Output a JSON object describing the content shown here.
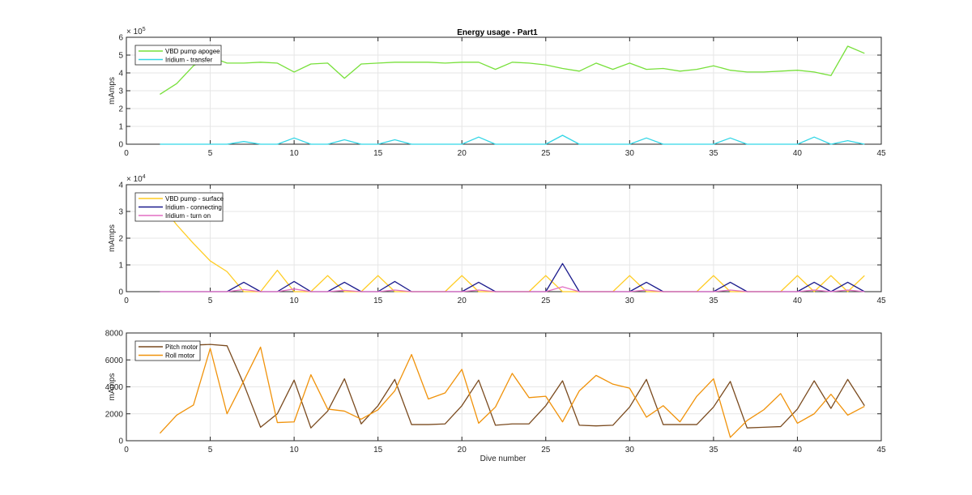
{
  "figure": {
    "title": "Energy usage - Part1",
    "xlabel": "Dive number"
  },
  "chart_data": [
    {
      "type": "line",
      "title": "Energy usage - Part1",
      "xlabel": "",
      "ylabel": "mAmps",
      "xlim": [
        0,
        45
      ],
      "ylim": [
        0,
        6
      ],
      "y_exponent_label": "× 10",
      "y_exponent_power": "5",
      "y_multiplier": 100000,
      "x_ticks": [
        "0",
        "5",
        "10",
        "15",
        "20",
        "25",
        "30",
        "35",
        "40",
        "45"
      ],
      "y_ticks": [
        "0",
        "1",
        "2",
        "3",
        "4",
        "5",
        "6"
      ],
      "grid": true,
      "legend": "top-left",
      "x": [
        2,
        3,
        4,
        5,
        6,
        7,
        8,
        9,
        10,
        11,
        12,
        13,
        14,
        15,
        16,
        17,
        18,
        19,
        20,
        21,
        22,
        23,
        24,
        25,
        26,
        27,
        28,
        29,
        30,
        31,
        32,
        33,
        34,
        35,
        36,
        37,
        38,
        39,
        40,
        41,
        42,
        43,
        44
      ],
      "series": [
        {
          "name": "VBD pump apogee",
          "color": "#77e03a",
          "values": [
            2.8,
            3.4,
            4.4,
            4.9,
            4.55,
            4.55,
            4.6,
            4.55,
            4.05,
            4.5,
            4.55,
            3.7,
            4.5,
            4.55,
            4.6,
            4.6,
            4.6,
            4.55,
            4.6,
            4.6,
            4.2,
            4.6,
            4.55,
            4.45,
            4.25,
            4.1,
            4.55,
            4.2,
            4.55,
            4.2,
            4.25,
            4.1,
            4.2,
            4.4,
            4.15,
            4.05,
            4.05,
            4.1,
            4.15,
            4.05,
            3.85,
            5.5,
            5.1
          ]
        },
        {
          "name": "Iridium - transfer",
          "color": "#33d6e6",
          "values": [
            0,
            0,
            0,
            0,
            0,
            0.15,
            0,
            0,
            0.35,
            0,
            0,
            0.25,
            0,
            0,
            0.25,
            0,
            0,
            0,
            0,
            0.4,
            0,
            0,
            0,
            0,
            0.5,
            0,
            0,
            0,
            0,
            0.35,
            0,
            0,
            0,
            0,
            0.35,
            0,
            0,
            0,
            0,
            0.4,
            0,
            0.2,
            0
          ]
        }
      ]
    },
    {
      "type": "line",
      "title": "",
      "xlabel": "",
      "ylabel": "mAmps",
      "xlim": [
        0,
        45
      ],
      "ylim": [
        0,
        4
      ],
      "y_exponent_label": "× 10",
      "y_exponent_power": "4",
      "y_multiplier": 10000,
      "x_ticks": [
        "0",
        "5",
        "10",
        "15",
        "20",
        "25",
        "30",
        "35",
        "40",
        "45"
      ],
      "y_ticks": [
        "0",
        "1",
        "2",
        "3",
        "4"
      ],
      "grid": true,
      "legend": "top-left",
      "x": [
        2,
        3,
        4,
        5,
        6,
        7,
        8,
        9,
        10,
        11,
        12,
        13,
        14,
        15,
        16,
        17,
        18,
        19,
        20,
        21,
        22,
        23,
        24,
        25,
        26,
        27,
        28,
        29,
        30,
        31,
        32,
        33,
        34,
        35,
        36,
        37,
        38,
        39,
        40,
        41,
        42,
        43,
        44
      ],
      "series": [
        {
          "name": "VBD pump - surface",
          "color": "#ffcc22",
          "values": [
            3.3,
            2.5,
            1.8,
            1.15,
            0.75,
            0,
            0,
            0.8,
            0,
            0,
            0.6,
            0,
            0,
            0.6,
            0,
            0,
            0,
            0,
            0.6,
            0,
            0,
            0,
            0,
            0.6,
            0,
            0,
            0,
            0,
            0.6,
            0,
            0,
            0,
            0,
            0.6,
            0,
            0,
            0,
            0,
            0.6,
            0,
            0.6,
            0,
            0.6
          ]
        },
        {
          "name": "Iridium - connecting",
          "color": "#1a1a8c",
          "values": [
            0,
            0,
            0,
            0,
            0,
            0.35,
            0,
            0,
            0.38,
            0,
            0,
            0.35,
            0,
            0,
            0.38,
            0,
            0,
            0,
            0,
            0.35,
            0,
            0,
            0,
            0,
            1.05,
            0,
            0,
            0,
            0,
            0.35,
            0,
            0,
            0,
            0,
            0.35,
            0,
            0,
            0,
            0,
            0.35,
            0,
            0.35,
            0
          ]
        },
        {
          "name": "Iridium - turn on",
          "color": "#e26fc3",
          "values": [
            0,
            0,
            0,
            0,
            0,
            0.08,
            0,
            0,
            0.1,
            0,
            0,
            0.05,
            0,
            0,
            0.06,
            0,
            0,
            0,
            0,
            0.06,
            0,
            0,
            0,
            0,
            0.18,
            0,
            0,
            0,
            0,
            0.06,
            0,
            0,
            0,
            0,
            0.06,
            0,
            0,
            0,
            0,
            0.06,
            0,
            0.06,
            0
          ]
        }
      ]
    },
    {
      "type": "line",
      "title": "",
      "xlabel": "Dive number",
      "ylabel": "mAmps",
      "xlim": [
        0,
        45
      ],
      "ylim": [
        0,
        8000
      ],
      "x_ticks": [
        "0",
        "5",
        "10",
        "15",
        "20",
        "25",
        "30",
        "35",
        "40",
        "45"
      ],
      "y_ticks": [
        "0",
        "2000",
        "4000",
        "6000",
        "8000"
      ],
      "grid": true,
      "legend": "top-left",
      "x": [
        2,
        3,
        4,
        5,
        6,
        7,
        8,
        9,
        10,
        11,
        12,
        13,
        14,
        15,
        16,
        17,
        18,
        19,
        20,
        21,
        22,
        23,
        24,
        25,
        26,
        27,
        28,
        29,
        30,
        31,
        32,
        33,
        34,
        35,
        36,
        37,
        38,
        39,
        40,
        41,
        42,
        43,
        44
      ],
      "series": [
        {
          "name": "Pitch motor",
          "color": "#7a4a1e",
          "values": [
            null,
            null,
            7100,
            7150,
            7050,
            4200,
            1000,
            2000,
            4500,
            950,
            2200,
            4600,
            1250,
            2600,
            4550,
            1200,
            1200,
            1250,
            2600,
            4500,
            1150,
            1250,
            1250,
            2600,
            4450,
            1150,
            1100,
            1150,
            2500,
            4550,
            1200,
            1200,
            1200,
            2500,
            4400,
            950,
            1000,
            1050,
            2350,
            4450,
            2400,
            4550,
            2600
          ]
        },
        {
          "name": "Roll motor",
          "color": "#f0920a",
          "values": [
            550,
            1900,
            2650,
            6850,
            2000,
            4450,
            6950,
            1350,
            1400,
            4900,
            2350,
            2200,
            1600,
            2300,
            3700,
            6400,
            3100,
            3550,
            5300,
            1300,
            2500,
            5000,
            3200,
            3300,
            1400,
            3700,
            4850,
            4200,
            3900,
            1750,
            2600,
            1400,
            3300,
            4600,
            250,
            1500,
            2300,
            3500,
            1300,
            2000,
            3450,
            1900,
            2550
          ]
        }
      ]
    }
  ]
}
